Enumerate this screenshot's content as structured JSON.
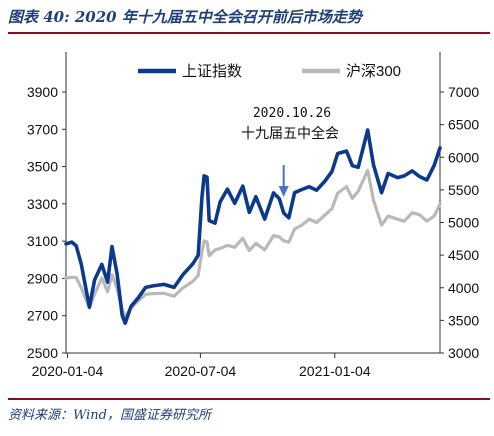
{
  "title": "图表 40:  2020 年十九届五中全会召开前后市场走势",
  "source": "资料来源：Wind，国盛证券研究所",
  "chart_data": {
    "type": "line",
    "x_tick_labels": [
      "2020-01-04",
      "2020-07-04",
      "2021-01-04"
    ],
    "x_start": "2020-01-02",
    "x_end": "2021-05-28",
    "x_ticks": [
      "2020-01-04",
      "2020-07-04",
      "2021-01-04"
    ],
    "y_left": {
      "ticks": [
        2500,
        2700,
        2900,
        3100,
        3300,
        3500,
        3700,
        3900
      ],
      "lim": [
        2500,
        3900
      ]
    },
    "y_right": {
      "ticks": [
        3000,
        3500,
        4000,
        4500,
        5000,
        5500,
        6000,
        6500,
        7000
      ],
      "lim": [
        3000,
        7000
      ]
    },
    "annotation": {
      "date": "2020.10.26",
      "text": "十九届五中全会",
      "x": "2020-10-26"
    },
    "legend_position": "top",
    "series": [
      {
        "name": "上证指数",
        "axis": "left",
        "color": "#0b3a8c",
        "points": [
          [
            "2020-01-02",
            3085
          ],
          [
            "2020-01-10",
            3095
          ],
          [
            "2020-01-16",
            3075
          ],
          [
            "2020-01-23",
            2976
          ],
          [
            "2020-02-03",
            2746
          ],
          [
            "2020-02-10",
            2890
          ],
          [
            "2020-02-20",
            2975
          ],
          [
            "2020-02-28",
            2880
          ],
          [
            "2020-03-05",
            3071
          ],
          [
            "2020-03-12",
            2923
          ],
          [
            "2020-03-19",
            2702
          ],
          [
            "2020-03-23",
            2660
          ],
          [
            "2020-03-31",
            2750
          ],
          [
            "2020-04-10",
            2796
          ],
          [
            "2020-04-20",
            2852
          ],
          [
            "2020-04-30",
            2860
          ],
          [
            "2020-05-15",
            2868
          ],
          [
            "2020-05-29",
            2852
          ],
          [
            "2020-06-10",
            2920
          ],
          [
            "2020-06-24",
            2980
          ],
          [
            "2020-07-01",
            3025
          ],
          [
            "2020-07-06",
            3332
          ],
          [
            "2020-07-09",
            3450
          ],
          [
            "2020-07-13",
            3443
          ],
          [
            "2020-07-16",
            3210
          ],
          [
            "2020-07-24",
            3197
          ],
          [
            "2020-07-31",
            3310
          ],
          [
            "2020-08-10",
            3379
          ],
          [
            "2020-08-20",
            3303
          ],
          [
            "2020-08-31",
            3395
          ],
          [
            "2020-09-09",
            3254
          ],
          [
            "2020-09-18",
            3338
          ],
          [
            "2020-09-30",
            3218
          ],
          [
            "2020-10-12",
            3359
          ],
          [
            "2020-10-20",
            3328
          ],
          [
            "2020-10-26",
            3251
          ],
          [
            "2020-11-02",
            3225
          ],
          [
            "2020-11-10",
            3360
          ],
          [
            "2020-11-20",
            3377
          ],
          [
            "2020-11-30",
            3392
          ],
          [
            "2020-12-10",
            3373
          ],
          [
            "2020-12-21",
            3420
          ],
          [
            "2020-12-31",
            3473
          ],
          [
            "2021-01-08",
            3570
          ],
          [
            "2021-01-20",
            3583
          ],
          [
            "2021-01-28",
            3505
          ],
          [
            "2021-02-05",
            3496
          ],
          [
            "2021-02-18",
            3696
          ],
          [
            "2021-02-26",
            3509
          ],
          [
            "2021-03-09",
            3360
          ],
          [
            "2021-03-18",
            3463
          ],
          [
            "2021-03-31",
            3441
          ],
          [
            "2021-04-09",
            3450
          ],
          [
            "2021-04-20",
            3477
          ],
          [
            "2021-04-30",
            3447
          ],
          [
            "2021-05-10",
            3428
          ],
          [
            "2021-05-20",
            3507
          ],
          [
            "2021-05-28",
            3600
          ]
        ]
      },
      {
        "name": "沪深300",
        "axis": "right",
        "color": "#b9b9b9",
        "points": [
          [
            "2020-01-02",
            4150
          ],
          [
            "2020-01-10",
            4160
          ],
          [
            "2020-01-16",
            4155
          ],
          [
            "2020-01-23",
            4000
          ],
          [
            "2020-02-03",
            3690
          ],
          [
            "2020-02-10",
            3900
          ],
          [
            "2020-02-20",
            4150
          ],
          [
            "2020-02-28",
            3940
          ],
          [
            "2020-03-05",
            4200
          ],
          [
            "2020-03-12",
            3990
          ],
          [
            "2020-03-19",
            3655
          ],
          [
            "2020-03-23",
            3560
          ],
          [
            "2020-03-31",
            3690
          ],
          [
            "2020-04-10",
            3800
          ],
          [
            "2020-04-20",
            3900
          ],
          [
            "2020-04-30",
            3910
          ],
          [
            "2020-05-15",
            3915
          ],
          [
            "2020-05-29",
            3870
          ],
          [
            "2020-06-10",
            4000
          ],
          [
            "2020-06-24",
            4100
          ],
          [
            "2020-07-01",
            4190
          ],
          [
            "2020-07-06",
            4550
          ],
          [
            "2020-07-09",
            4720
          ],
          [
            "2020-07-13",
            4700
          ],
          [
            "2020-07-16",
            4490
          ],
          [
            "2020-07-24",
            4580
          ],
          [
            "2020-07-31",
            4600
          ],
          [
            "2020-08-10",
            4650
          ],
          [
            "2020-08-20",
            4620
          ],
          [
            "2020-08-31",
            4760
          ],
          [
            "2020-09-09",
            4570
          ],
          [
            "2020-09-18",
            4680
          ],
          [
            "2020-09-30",
            4580
          ],
          [
            "2020-10-12",
            4800
          ],
          [
            "2020-10-20",
            4780
          ],
          [
            "2020-10-26",
            4720
          ],
          [
            "2020-11-02",
            4700
          ],
          [
            "2020-11-10",
            4900
          ],
          [
            "2020-11-20",
            4960
          ],
          [
            "2020-11-30",
            5050
          ],
          [
            "2020-12-10",
            5000
          ],
          [
            "2020-12-21",
            5110
          ],
          [
            "2020-12-31",
            5210
          ],
          [
            "2021-01-08",
            5450
          ],
          [
            "2021-01-20",
            5550
          ],
          [
            "2021-01-28",
            5370
          ],
          [
            "2021-02-05",
            5480
          ],
          [
            "2021-02-18",
            5800
          ],
          [
            "2021-02-26",
            5340
          ],
          [
            "2021-03-09",
            4960
          ],
          [
            "2021-03-18",
            5100
          ],
          [
            "2021-03-31",
            5050
          ],
          [
            "2021-04-09",
            5020
          ],
          [
            "2021-04-20",
            5150
          ],
          [
            "2021-04-30",
            5120
          ],
          [
            "2021-05-10",
            5020
          ],
          [
            "2021-05-20",
            5100
          ],
          [
            "2021-05-28",
            5280
          ]
        ]
      }
    ]
  }
}
